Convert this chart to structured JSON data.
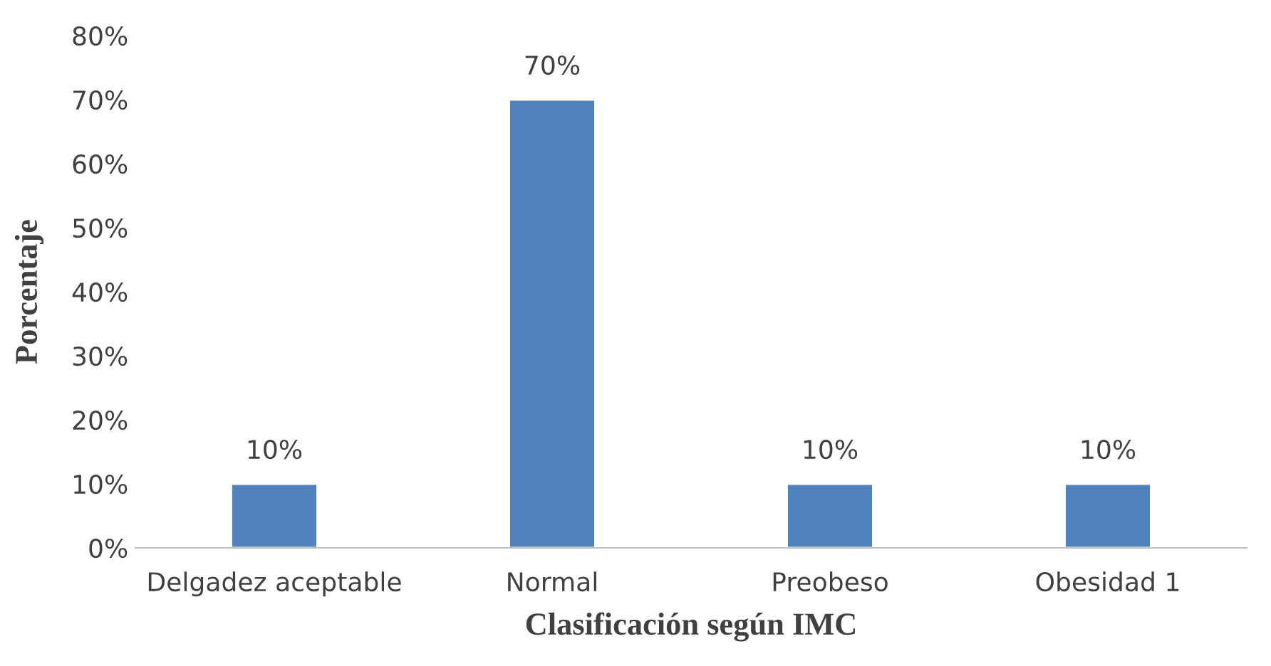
{
  "chart_data": {
    "type": "bar",
    "xlabel": "Clasificación según IMC",
    "ylabel": "Porcentaje",
    "categories": [
      "Delgadez aceptable",
      "Normal",
      "Preobeso",
      "Obesidad 1"
    ],
    "values": [
      10,
      70,
      10,
      10
    ],
    "color": "#4f81bd",
    "value_labels": [
      "10%",
      "70%",
      "10%",
      "10%"
    ],
    "ylim": [
      0,
      80
    ],
    "yticks": [
      {
        "value": 0,
        "label": "0%"
      },
      {
        "value": 10,
        "label": "10%"
      },
      {
        "value": 20,
        "label": "20%"
      },
      {
        "value": 30,
        "label": "30%"
      },
      {
        "value": 40,
        "label": "40%"
      },
      {
        "value": 50,
        "label": "50%"
      },
      {
        "value": 60,
        "label": "60%"
      },
      {
        "value": 70,
        "label": "70%"
      },
      {
        "value": 80,
        "label": "80%"
      }
    ],
    "grid": false
  }
}
